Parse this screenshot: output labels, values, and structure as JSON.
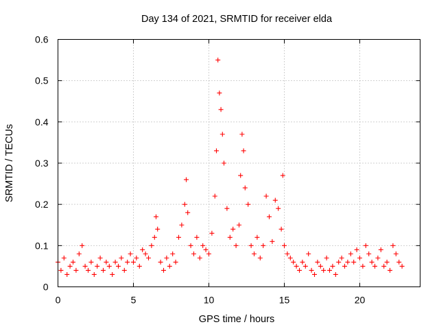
{
  "chart_data": {
    "type": "scatter",
    "title": "Day 134 of 2021, SRMTID for receiver elda",
    "xlabel": "GPS time / hours",
    "ylabel": "SRMTID / TECUs",
    "xlim": [
      0,
      24
    ],
    "ylim": [
      0,
      0.6
    ],
    "x_ticks": [
      "0",
      "5",
      "10",
      "15",
      "20"
    ],
    "y_ticks": [
      "0",
      "0.1",
      "0.2",
      "0.3",
      "0.4",
      "0.5",
      "0.6"
    ],
    "grid": true,
    "marker": "+",
    "series": [
      {
        "name": "SRMTID",
        "color": "#ff0000",
        "x": [
          0.0,
          0.2,
          0.4,
          0.6,
          0.8,
          1.0,
          1.2,
          1.4,
          1.6,
          1.8,
          2.0,
          2.2,
          2.4,
          2.6,
          2.8,
          3.0,
          3.2,
          3.4,
          3.6,
          3.8,
          4.0,
          4.2,
          4.4,
          4.6,
          4.8,
          5.0,
          5.2,
          5.4,
          5.6,
          5.8,
          6.0,
          6.2,
          6.4,
          6.5,
          6.6,
          6.8,
          7.0,
          7.2,
          7.4,
          7.6,
          7.8,
          8.0,
          8.2,
          8.4,
          8.5,
          8.6,
          8.8,
          9.0,
          9.2,
          9.4,
          9.6,
          9.8,
          10.0,
          10.2,
          10.4,
          10.5,
          10.6,
          10.7,
          10.8,
          10.9,
          11.0,
          11.2,
          11.4,
          11.6,
          11.8,
          12.0,
          12.1,
          12.2,
          12.3,
          12.4,
          12.6,
          12.8,
          13.0,
          13.2,
          13.4,
          13.6,
          13.8,
          14.0,
          14.2,
          14.4,
          14.6,
          14.8,
          14.9,
          15.0,
          15.2,
          15.4,
          15.6,
          15.8,
          16.0,
          16.2,
          16.4,
          16.6,
          16.8,
          17.0,
          17.2,
          17.4,
          17.6,
          17.8,
          18.0,
          18.2,
          18.4,
          18.6,
          18.8,
          19.0,
          19.2,
          19.4,
          19.6,
          19.8,
          20.0,
          20.2,
          20.4,
          20.6,
          20.8,
          21.0,
          21.2,
          21.4,
          21.6,
          21.8,
          22.0,
          22.2,
          22.4,
          22.6,
          22.8
        ],
        "y": [
          0.06,
          0.04,
          0.07,
          0.03,
          0.05,
          0.06,
          0.04,
          0.08,
          0.1,
          0.05,
          0.04,
          0.06,
          0.03,
          0.05,
          0.07,
          0.04,
          0.06,
          0.05,
          0.03,
          0.06,
          0.05,
          0.07,
          0.04,
          0.06,
          0.08,
          0.06,
          0.07,
          0.05,
          0.09,
          0.08,
          0.07,
          0.1,
          0.12,
          0.17,
          0.14,
          0.06,
          0.04,
          0.07,
          0.05,
          0.08,
          0.06,
          0.12,
          0.15,
          0.2,
          0.26,
          0.18,
          0.1,
          0.08,
          0.12,
          0.07,
          0.1,
          0.09,
          0.08,
          0.13,
          0.22,
          0.33,
          0.55,
          0.47,
          0.43,
          0.37,
          0.3,
          0.19,
          0.12,
          0.14,
          0.1,
          0.15,
          0.27,
          0.37,
          0.33,
          0.24,
          0.2,
          0.1,
          0.08,
          0.12,
          0.07,
          0.1,
          0.22,
          0.17,
          0.11,
          0.21,
          0.19,
          0.14,
          0.27,
          0.1,
          0.08,
          0.07,
          0.06,
          0.05,
          0.04,
          0.06,
          0.05,
          0.08,
          0.04,
          0.03,
          0.06,
          0.05,
          0.04,
          0.07,
          0.04,
          0.05,
          0.03,
          0.06,
          0.07,
          0.05,
          0.06,
          0.08,
          0.06,
          0.09,
          0.07,
          0.05,
          0.1,
          0.08,
          0.06,
          0.05,
          0.07,
          0.09,
          0.05,
          0.06,
          0.04,
          0.1,
          0.08,
          0.06,
          0.05
        ]
      }
    ]
  }
}
